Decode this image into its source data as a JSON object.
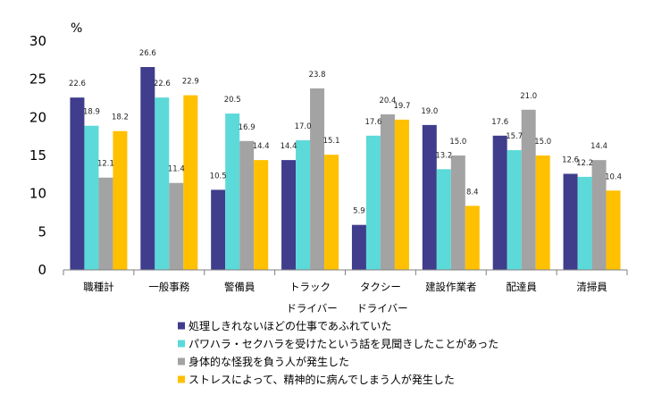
{
  "chart_data": {
    "type": "bar",
    "unit_label": "%",
    "ylim": [
      0,
      30
    ],
    "yticks": [
      0,
      5,
      10,
      15,
      20,
      25,
      30
    ],
    "grid": false,
    "legend_position": "bottom",
    "categories": [
      {
        "line1": "職種計",
        "line2": ""
      },
      {
        "line1": "一般事務",
        "line2": ""
      },
      {
        "line1": "警備員",
        "line2": ""
      },
      {
        "line1": "トラック",
        "line2": "ドライバー"
      },
      {
        "line1": "タクシー",
        "line2": "ドライバー"
      },
      {
        "line1": "建設作業者",
        "line2": ""
      },
      {
        "line1": "配達員",
        "line2": ""
      },
      {
        "line1": "清掃員",
        "line2": ""
      }
    ],
    "series": [
      {
        "name": "処理しきれないほどの仕事であふれていた",
        "color": "#3f3d8c",
        "values": [
          22.6,
          26.6,
          10.5,
          14.4,
          5.9,
          19.0,
          17.6,
          12.6
        ]
      },
      {
        "name": "パワハラ・セクハラを受けたという話を見聞きしたことがあった",
        "color": "#5cd9d9",
        "values": [
          18.9,
          22.6,
          20.5,
          17.0,
          17.6,
          13.2,
          15.7,
          12.2
        ]
      },
      {
        "name": "身体的な怪我を負う人が発生した",
        "color": "#a3a3a3",
        "values": [
          12.1,
          11.4,
          16.9,
          23.8,
          20.4,
          15.0,
          21.0,
          14.4
        ]
      },
      {
        "name": "ストレスによって、精神的に病んでしまう人が発生した",
        "color": "#ffc000",
        "values": [
          18.2,
          22.9,
          14.4,
          15.1,
          19.7,
          8.4,
          15.0,
          10.4
        ]
      }
    ]
  }
}
